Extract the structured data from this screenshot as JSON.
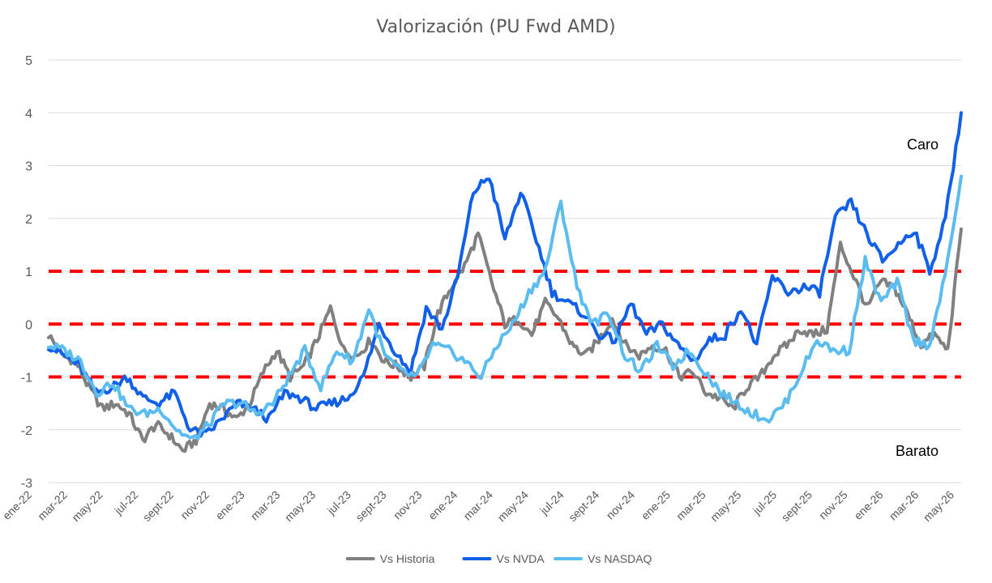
{
  "chart_data": {
    "type": "line",
    "title": "Valorización (PU Fwd AMD)",
    "xlabel": "",
    "ylabel": "",
    "ylim": [
      -3,
      5
    ],
    "yticks": [
      "5",
      "4",
      "3",
      "2",
      "1",
      "0",
      "-1",
      "-2",
      "-3"
    ],
    "x_tick_labels": [
      "ene-22",
      "mar-22",
      "may-22",
      "jul-22",
      "sept-22",
      "nov-22",
      "ene-23",
      "mar-23",
      "may-23",
      "jul-23",
      "sept-23",
      "nov-23",
      "ene-24",
      "mar-24",
      "may-24",
      "jul-24",
      "sept-24",
      "nov-24",
      "ene-25",
      "mar-25",
      "may-25",
      "jul-25",
      "sept-25",
      "nov-25",
      "ene-26",
      "mar-26",
      "may-26"
    ],
    "grid": "horizontal",
    "legend_position": "bottom",
    "reference_lines": [
      {
        "y": 1,
        "color": "#ff0000",
        "style": "dashed"
      },
      {
        "y": 0,
        "color": "#ff0000",
        "style": "dashed"
      },
      {
        "y": -1,
        "color": "#ff0000",
        "style": "dashed"
      }
    ],
    "annotations": [
      {
        "text": "Caro",
        "x": "may-26",
        "y": 3.4
      },
      {
        "text": "Barato",
        "x": "may-26",
        "y": -2.4
      }
    ],
    "series": [
      {
        "name": "Vs Historia",
        "color": "#808080",
        "values": [
          -0.2,
          -0.6,
          -0.7,
          -1.2,
          -1.6,
          -1.5,
          -1.7,
          -2.2,
          -1.9,
          -2.1,
          -2.4,
          -2.2,
          -1.5,
          -1.6,
          -1.8,
          -1.5,
          -0.9,
          -0.5,
          -1.0,
          -0.8,
          -0.3,
          0.3,
          -0.5,
          -0.6,
          -0.3,
          -0.7,
          -0.8,
          -1.0,
          -0.8,
          0.2,
          0.7,
          1.1,
          1.7,
          0.8,
          0.0,
          0.1,
          -0.2,
          0.4,
          0.1,
          -0.4,
          -0.6,
          -0.3,
          0.1,
          -0.4,
          -0.6,
          -0.4,
          -0.5,
          -1.0,
          -0.9,
          -1.3,
          -1.4,
          -1.6,
          -1.2,
          -1.0,
          -0.6,
          -0.4,
          -0.1,
          -0.2,
          -0.1,
          1.5,
          0.9,
          0.3,
          0.8,
          0.7,
          0.2,
          -0.4,
          -0.2,
          -0.5,
          1.8
        ]
      },
      {
        "name": "Vs NVDA",
        "color": "#1060e8",
        "values": [
          -0.4,
          -0.6,
          -0.8,
          -1.3,
          -1.2,
          -1.0,
          -1.4,
          -1.5,
          -1.3,
          -2.0,
          -2.1,
          -1.8,
          -1.5,
          -1.6,
          -1.8,
          -1.3,
          -1.4,
          -1.6,
          -1.5,
          -1.4,
          -1.0,
          0.0,
          -0.5,
          -0.9,
          0.3,
          -0.1,
          0.9,
          2.5,
          2.8,
          1.6,
          2.5,
          1.6,
          0.6,
          0.4,
          0.2,
          -0.2,
          -0.3,
          0.4,
          -0.2,
          0.0,
          -0.4,
          -0.7,
          -0.3,
          -0.2,
          0.3,
          -0.4,
          0.9,
          0.6,
          0.7,
          0.6,
          2.0,
          2.3,
          1.7,
          1.2,
          1.5,
          1.8,
          1.0,
          2.0,
          4.0
        ]
      },
      {
        "name": "Vs NASDAQ",
        "color": "#5bbcf0",
        "values": [
          -0.4,
          -0.5,
          -0.7,
          -1.3,
          -1.1,
          -1.6,
          -1.7,
          -1.6,
          -2.0,
          -2.2,
          -1.9,
          -1.5,
          -1.5,
          -1.7,
          -1.5,
          -1.0,
          -0.5,
          -1.2,
          -0.5,
          -0.7,
          0.3,
          -0.6,
          -0.9,
          -1.0,
          -0.4,
          -0.5,
          -0.7,
          -1.0,
          -0.4,
          0.0,
          0.6,
          1.0,
          2.3,
          0.7,
          0.0,
          0.2,
          -0.6,
          -0.9,
          -0.4,
          -0.8,
          -0.5,
          -0.9,
          -1.3,
          -1.5,
          -1.7,
          -1.8,
          -1.5,
          -0.9,
          -0.3,
          -0.5,
          -0.5,
          1.2,
          0.4,
          0.8,
          -0.3,
          -0.4,
          0.9,
          2.8
        ]
      }
    ]
  }
}
